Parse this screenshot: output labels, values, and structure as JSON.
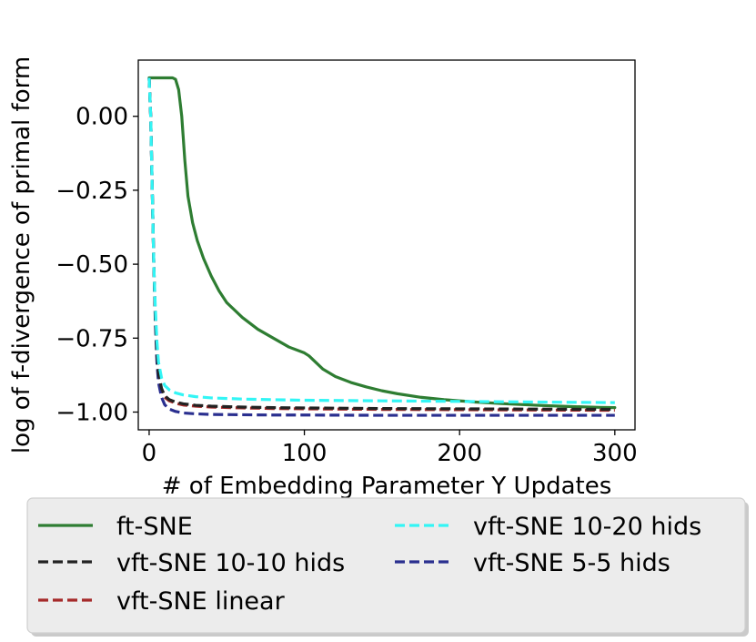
{
  "chart_data": {
    "type": "line",
    "xlabel": "# of Embedding Parameter Y Updates",
    "ylabel": "log of f-divergence of primal form",
    "xlim": [
      -7,
      313
    ],
    "ylim": [
      -1.06,
      0.19
    ],
    "xticks": [
      0,
      100,
      200,
      300
    ],
    "xtick_labels": [
      "0",
      "100",
      "200",
      "300"
    ],
    "yticks": [
      0.0,
      -0.25,
      -0.5,
      -0.75,
      -1.0
    ],
    "ytick_labels": [
      "0.00",
      "−0.25",
      "−0.50",
      "−0.75",
      "−1.00"
    ],
    "grid": false,
    "legend_position": "bottom",
    "series": [
      {
        "name": "ft-SNE",
        "color": "#2e7d32",
        "style": "solid",
        "x": [
          0,
          5,
          10,
          15,
          17,
          19,
          21,
          23,
          25,
          28,
          31,
          35,
          40,
          45,
          50,
          60,
          70,
          80,
          90,
          100,
          103,
          107,
          112,
          120,
          130,
          140,
          150,
          160,
          175,
          190,
          210,
          230,
          250,
          270,
          290,
          300
        ],
        "y": [
          0.13,
          0.13,
          0.13,
          0.13,
          0.125,
          0.09,
          0.0,
          -0.15,
          -0.27,
          -0.36,
          -0.42,
          -0.48,
          -0.54,
          -0.59,
          -0.63,
          -0.68,
          -0.72,
          -0.75,
          -0.78,
          -0.8,
          -0.81,
          -0.83,
          -0.855,
          -0.88,
          -0.9,
          -0.915,
          -0.928,
          -0.938,
          -0.95,
          -0.958,
          -0.966,
          -0.972,
          -0.977,
          -0.981,
          -0.984,
          -0.985
        ]
      },
      {
        "name": "vft-SNE linear",
        "color": "#a52a2a",
        "style": "dashed",
        "x": [
          0,
          1,
          2,
          3,
          4,
          5,
          6,
          8,
          10,
          13,
          17,
          22,
          30,
          40,
          60,
          80,
          100,
          150,
          200,
          250,
          300
        ],
        "y": [
          0.13,
          0.0,
          -0.25,
          -0.5,
          -0.68,
          -0.8,
          -0.87,
          -0.925,
          -0.95,
          -0.962,
          -0.97,
          -0.976,
          -0.98,
          -0.983,
          -0.986,
          -0.988,
          -0.989,
          -0.991,
          -0.992,
          -0.993,
          -0.994
        ]
      },
      {
        "name": "vft-SNE 5-5 hids",
        "color": "#2a2f8f",
        "style": "dashed",
        "x": [
          0,
          1,
          2,
          3,
          4,
          5,
          6,
          8,
          10,
          13,
          17,
          22,
          30,
          40,
          60,
          80,
          100,
          150,
          200,
          250,
          300
        ],
        "y": [
          0.13,
          0.0,
          -0.25,
          -0.5,
          -0.7,
          -0.83,
          -0.9,
          -0.95,
          -0.975,
          -0.99,
          -0.998,
          -1.003,
          -1.006,
          -1.008,
          -1.009,
          -1.01,
          -1.01,
          -1.011,
          -1.011,
          -1.011,
          -1.011
        ]
      },
      {
        "name": "vft-SNE 10-10 hids",
        "color": "#222222",
        "style": "dashed",
        "x": [
          0,
          1,
          2,
          3,
          4,
          5,
          6,
          8,
          10,
          13,
          17,
          22,
          30,
          40,
          60,
          80,
          100,
          150,
          200,
          250,
          300
        ],
        "y": [
          0.13,
          0.0,
          -0.25,
          -0.5,
          -0.68,
          -0.8,
          -0.87,
          -0.92,
          -0.945,
          -0.958,
          -0.966,
          -0.972,
          -0.977,
          -0.98,
          -0.983,
          -0.985,
          -0.986,
          -0.988,
          -0.989,
          -0.99,
          -0.991
        ]
      },
      {
        "name": "vft-SNE 10-20 hids",
        "color": "#33f5f5",
        "style": "dashed",
        "x": [
          0,
          1,
          2,
          3,
          4,
          5,
          6,
          8,
          10,
          13,
          17,
          22,
          30,
          40,
          60,
          80,
          100,
          150,
          200,
          250,
          300
        ],
        "y": [
          0.13,
          0.0,
          -0.25,
          -0.5,
          -0.65,
          -0.76,
          -0.83,
          -0.885,
          -0.91,
          -0.925,
          -0.935,
          -0.942,
          -0.948,
          -0.952,
          -0.956,
          -0.958,
          -0.96,
          -0.962,
          -0.964,
          -0.966,
          -0.968
        ]
      }
    ],
    "legend_order": [
      0,
      3,
      1,
      4,
      2
    ]
  }
}
